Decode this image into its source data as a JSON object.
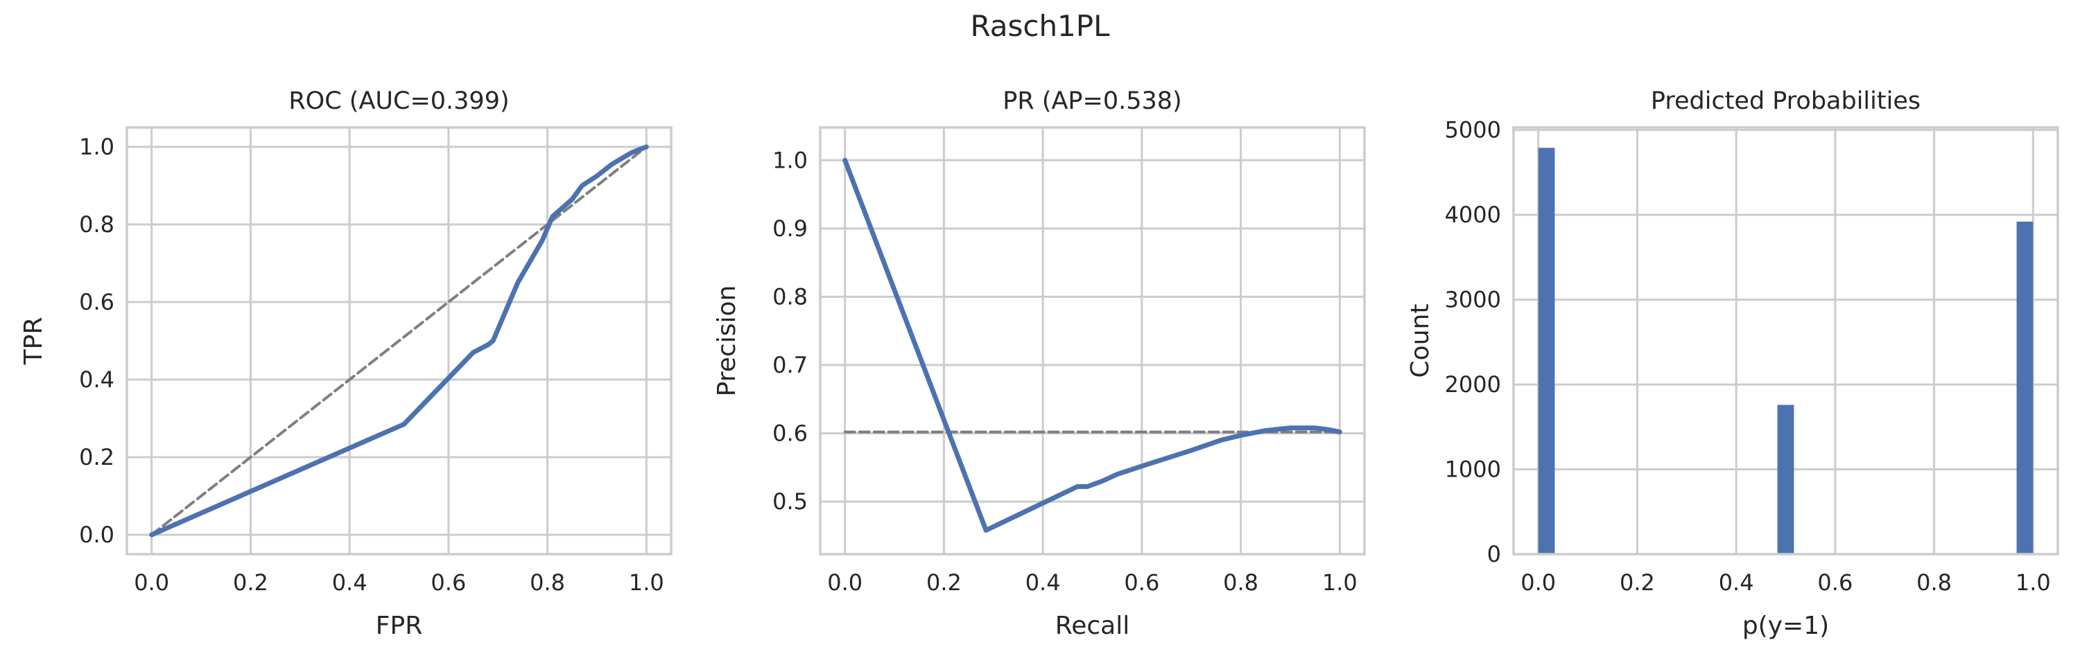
{
  "figure_title": "Rasch1PL",
  "colors": {
    "series": "#4c72b0",
    "baseline": "#7f7f7f",
    "grid": "#cccccc"
  },
  "chart_data": [
    {
      "type": "line",
      "title": "ROC (AUC=0.399)",
      "xlabel": "FPR",
      "ylabel": "TPR",
      "xlim": [
        -0.05,
        1.05
      ],
      "ylim": [
        -0.05,
        1.05
      ],
      "xticks": [
        "0.0",
        "0.2",
        "0.4",
        "0.6",
        "0.8",
        "1.0"
      ],
      "yticks": [
        "0.0",
        "0.2",
        "0.4",
        "0.6",
        "0.8",
        "1.0"
      ],
      "grid": true,
      "series": [
        {
          "style": "solid",
          "x": [
            0.0,
            0.51,
            0.65,
            0.68,
            0.69,
            0.7,
            0.74,
            0.79,
            0.81,
            0.85,
            0.87,
            0.9,
            0.93,
            0.95,
            0.97,
            0.99,
            1.0
          ],
          "y": [
            0.0,
            0.285,
            0.47,
            0.49,
            0.5,
            0.53,
            0.65,
            0.76,
            0.82,
            0.865,
            0.9,
            0.925,
            0.955,
            0.97,
            0.985,
            0.995,
            1.0
          ]
        },
        {
          "style": "dashed",
          "x": [
            0.0,
            1.0
          ],
          "y": [
            0.0,
            1.0
          ]
        }
      ]
    },
    {
      "type": "line",
      "title": "PR (AP=0.538)",
      "xlabel": "Recall",
      "ylabel": "Precision",
      "xlim": [
        -0.05,
        1.05
      ],
      "ylim": [
        0.423,
        1.048
      ],
      "xticks": [
        "0.0",
        "0.2",
        "0.4",
        "0.6",
        "0.8",
        "1.0"
      ],
      "yticks": [
        "0.5",
        "0.6",
        "0.7",
        "0.8",
        "0.9",
        "1.0"
      ],
      "grid": true,
      "series": [
        {
          "style": "solid",
          "x": [
            0.0,
            0.285,
            0.47,
            0.49,
            0.52,
            0.55,
            0.6,
            0.7,
            0.76,
            0.8,
            0.85,
            0.9,
            0.95,
            0.98,
            1.0
          ],
          "y": [
            1.0,
            0.458,
            0.522,
            0.522,
            0.53,
            0.54,
            0.552,
            0.575,
            0.59,
            0.597,
            0.604,
            0.608,
            0.608,
            0.605,
            0.602
          ]
        },
        {
          "style": "dashed",
          "x": [
            0.0,
            1.0
          ],
          "y": [
            0.602,
            0.602
          ]
        }
      ]
    },
    {
      "type": "bar",
      "title": "Predicted Probabilities",
      "xlabel": "p(y=1)",
      "ylabel": "Count",
      "xlim": [
        -0.05,
        1.05
      ],
      "ylim": [
        0,
        5030
      ],
      "xticks": [
        "0.0",
        "0.2",
        "0.4",
        "0.6",
        "0.8",
        "1.0"
      ],
      "yticks": [
        "0",
        "1000",
        "2000",
        "3000",
        "4000",
        "5000"
      ],
      "grid": true,
      "bins": [
        {
          "x0": 0.0,
          "x1": 0.0333,
          "count": 4790
        },
        {
          "x0": 0.4833,
          "x1": 0.5167,
          "count": 1760
        },
        {
          "x0": 0.9667,
          "x1": 1.0,
          "count": 3920
        }
      ]
    }
  ]
}
